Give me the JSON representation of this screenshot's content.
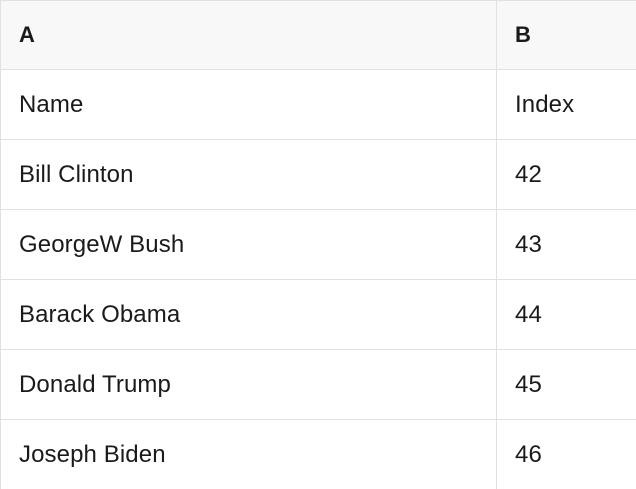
{
  "table": {
    "columns": [
      {
        "id": "A",
        "label": "A"
      },
      {
        "id": "B",
        "label": "B"
      }
    ],
    "rows": [
      {
        "name": "Name",
        "index": "Index"
      },
      {
        "name": "Bill Clinton",
        "index": "42"
      },
      {
        "name": "GeorgeW Bush",
        "index": "43"
      },
      {
        "name": "Barack Obama",
        "index": "44"
      },
      {
        "name": "Donald Trump",
        "index": "45"
      },
      {
        "name": "Joseph Biden",
        "index": "46"
      }
    ]
  },
  "colors": {
    "header-bg": "#f8f8f8",
    "cell-bg": "#ffffff",
    "border": "#e1e1e1",
    "text": "#1a1a1a"
  }
}
